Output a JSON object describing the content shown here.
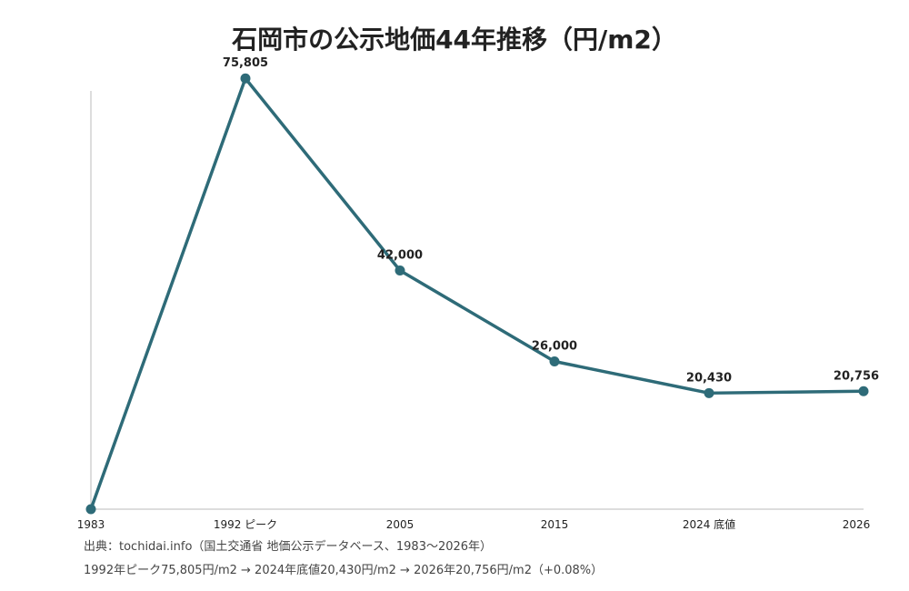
{
  "chart_data": {
    "type": "line",
    "title": "石岡市の公示地価44年推移（円/m2）",
    "categories": [
      "1983",
      "1992 ピーク",
      "2005",
      "2015",
      "2024 底値",
      "2026"
    ],
    "values": [
      0,
      75805,
      42000,
      26000,
      20430,
      20756
    ],
    "data_labels": [
      "",
      "75,805",
      "42,000",
      "26,000",
      "20,430",
      "20,756"
    ],
    "ylim": [
      0,
      80000
    ],
    "grid": false,
    "line_color": "#2e6b78",
    "axis_color": "#bbbbbb"
  },
  "footer": {
    "source": "出典：tochidai.info（国土交通省 地価公示データベース、1983〜2026年）",
    "summary": "1992年ピーク75,805円/m2 → 2024年底値20,430円/m2 → 2026年20,756円/m2（+0.08%）"
  }
}
